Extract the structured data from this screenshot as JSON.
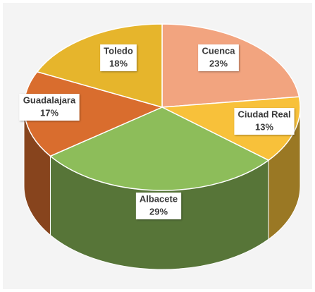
{
  "chart_data": {
    "type": "pie3d",
    "categories": [
      "Cuenca",
      "Ciudad Real",
      "Albacete",
      "Guadalajara",
      "Toledo"
    ],
    "values": [
      23,
      13,
      29,
      17,
      18
    ],
    "value_labels": [
      "23%",
      "13%",
      "29%",
      "17%",
      "18%"
    ],
    "colors": [
      "#f2a47f",
      "#f8c13a",
      "#8dbd5a",
      "#d96d2e",
      "#e6b52c"
    ]
  }
}
